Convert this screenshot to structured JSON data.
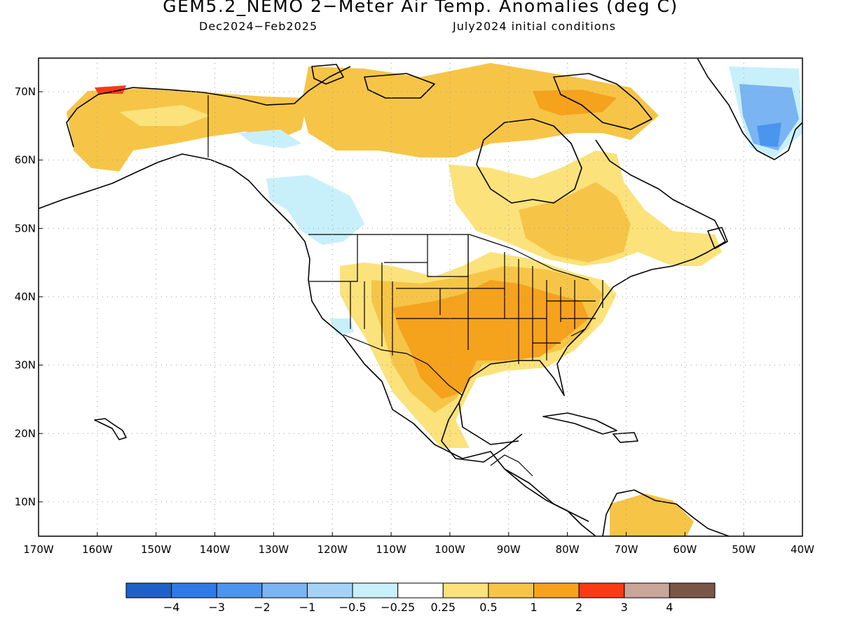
{
  "title": "GEM5.2_NEMO 2−Meter Air Temp. Anomalies (deg C)",
  "period": "Dec2024−Feb2025",
  "init": "July2024 initial conditions",
  "lat_labels": [
    "70N",
    "60N",
    "50N",
    "40N",
    "30N",
    "20N",
    "10N"
  ],
  "lon_labels": [
    "170W",
    "160W",
    "150W",
    "140W",
    "130W",
    "120W",
    "110W",
    "100W",
    "90W",
    "80W",
    "70W",
    "60W",
    "50W",
    "40W"
  ],
  "colorbar": {
    "colors": [
      "#1f5fc8",
      "#2e7be8",
      "#4b95ee",
      "#7ab4f2",
      "#a5d2f7",
      "#c8f0fb",
      "#ffffff",
      "#fbe27b",
      "#f6c547",
      "#f5a21d",
      "#fa3a12",
      "#c9a59a",
      "#7a5548"
    ],
    "labels": [
      "−4",
      "−3",
      "−2",
      "−1",
      "−0.5",
      "−0.25",
      "0.25",
      "0.5",
      "1",
      "2",
      "3",
      "4"
    ]
  }
}
